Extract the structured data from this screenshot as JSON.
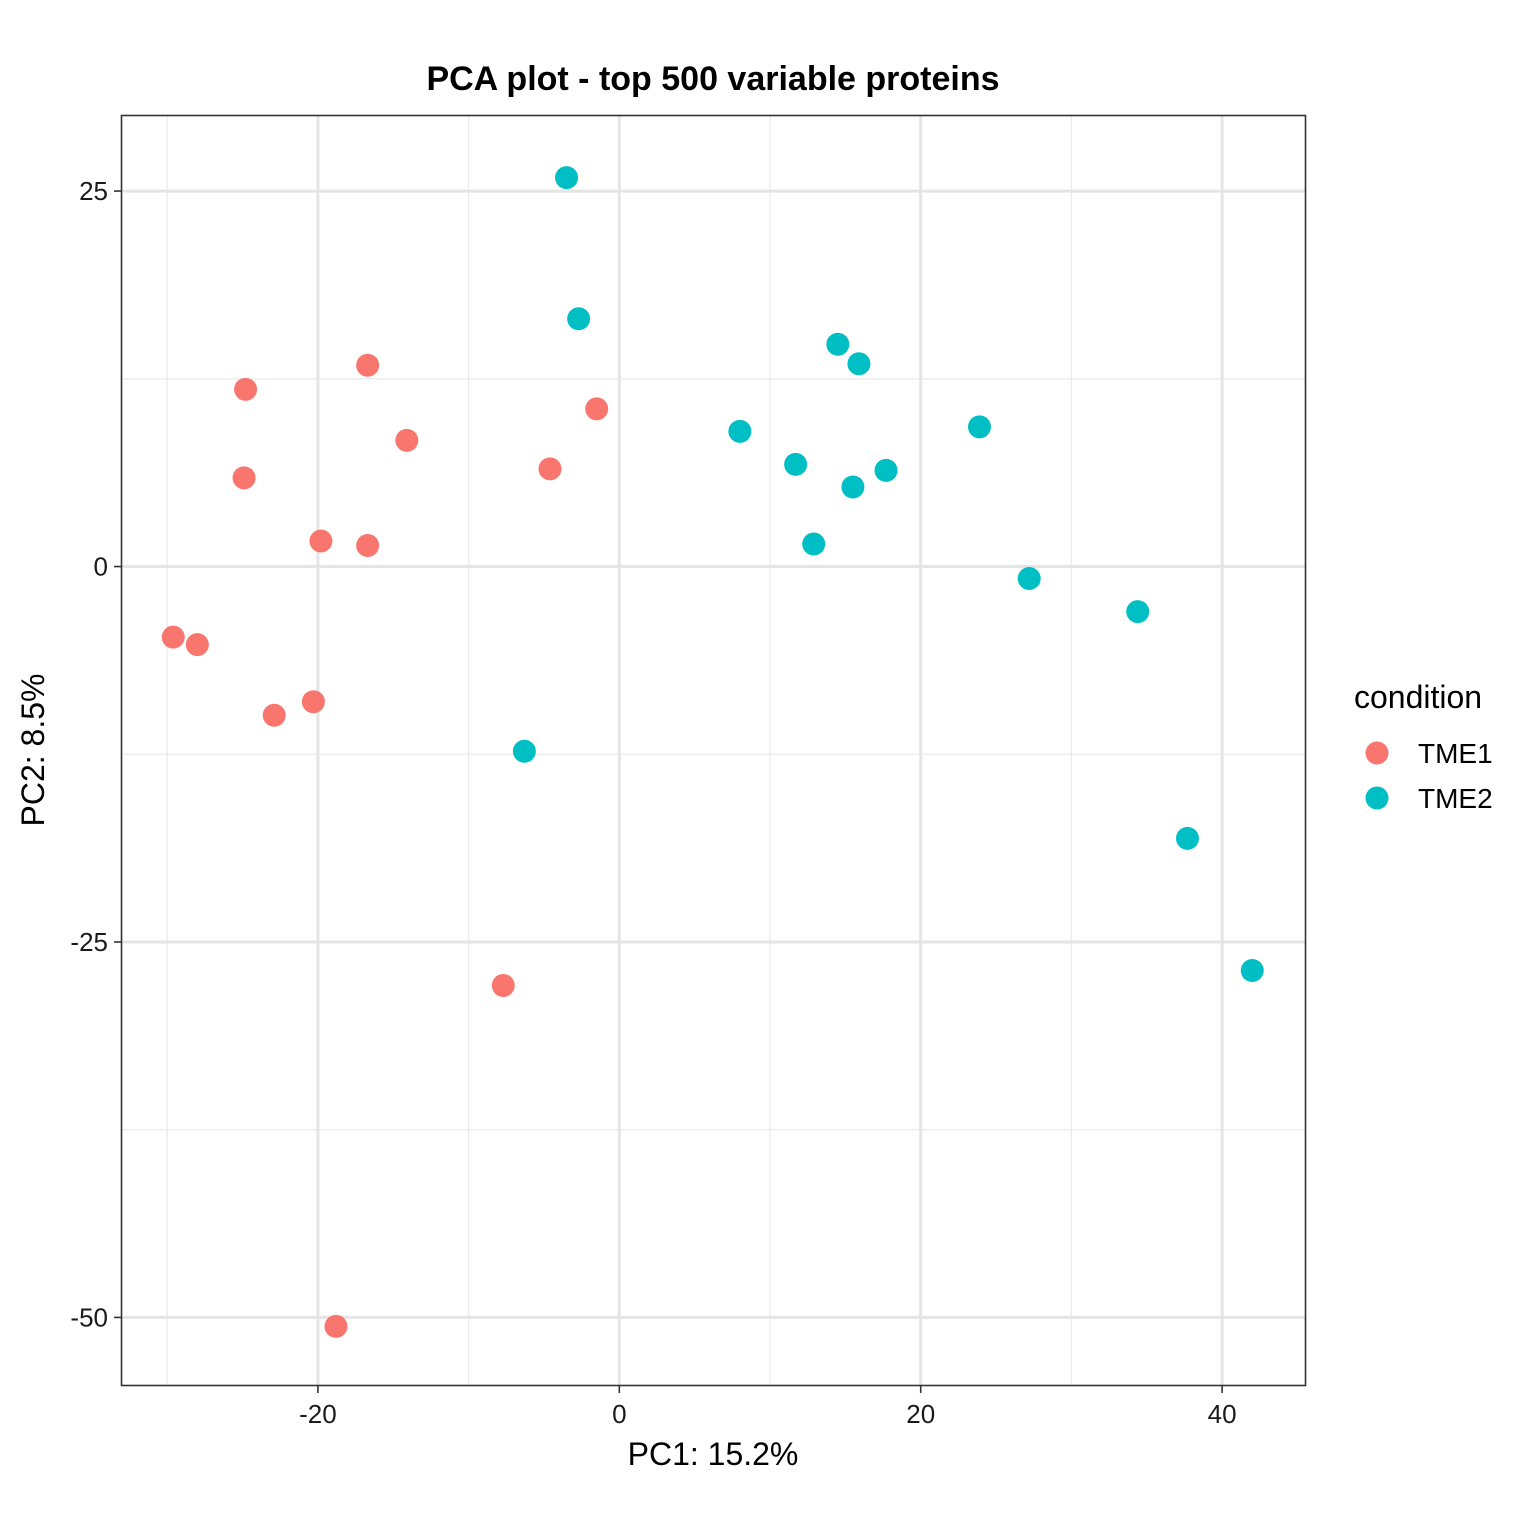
{
  "chart_data": {
    "type": "scatter",
    "title": "PCA plot - top 500 variable proteins",
    "xlabel": "PC1: 15.2%",
    "ylabel": "PC2: 8.5%",
    "xlim": [
      -33,
      45.5
    ],
    "ylim": [
      -54.5,
      30
    ],
    "x_ticks": [
      -20,
      0,
      20,
      40
    ],
    "x_tick_labels": [
      "-20",
      "0",
      "20",
      "40"
    ],
    "y_ticks": [
      25,
      0,
      -25,
      -50
    ],
    "y_tick_labels": [
      "25",
      "0",
      "-25",
      "-50"
    ],
    "grid": true,
    "legend": {
      "title": "condition",
      "placement": "right",
      "entries": [
        {
          "label": "TME1",
          "color": "#F8766D"
        },
        {
          "label": "TME2",
          "color": "#00BFC4"
        }
      ]
    },
    "series": [
      {
        "name": "TME1",
        "color": "#F8766D",
        "points": [
          {
            "x": -24.8,
            "y": 11.8
          },
          {
            "x": -16.7,
            "y": 13.4
          },
          {
            "x": -14.1,
            "y": 8.4
          },
          {
            "x": -1.5,
            "y": 10.5
          },
          {
            "x": -4.6,
            "y": 6.5
          },
          {
            "x": -24.9,
            "y": 5.9
          },
          {
            "x": -19.8,
            "y": 1.7
          },
          {
            "x": -16.7,
            "y": 1.4
          },
          {
            "x": -29.6,
            "y": -4.7
          },
          {
            "x": -28.0,
            "y": -5.2
          },
          {
            "x": -20.3,
            "y": -9.0
          },
          {
            "x": -22.9,
            "y": -9.9
          },
          {
            "x": -7.7,
            "y": -27.9
          },
          {
            "x": -18.8,
            "y": -50.6
          }
        ]
      },
      {
        "name": "TME2",
        "color": "#00BFC4",
        "points": [
          {
            "x": -3.5,
            "y": 25.9
          },
          {
            "x": -2.7,
            "y": 16.5
          },
          {
            "x": 14.5,
            "y": 14.8
          },
          {
            "x": 15.9,
            "y": 13.5
          },
          {
            "x": 8.0,
            "y": 9.0
          },
          {
            "x": 23.9,
            "y": 9.3
          },
          {
            "x": 11.7,
            "y": 6.8
          },
          {
            "x": 17.7,
            "y": 6.4
          },
          {
            "x": 15.5,
            "y": 5.3
          },
          {
            "x": 12.9,
            "y": 1.5
          },
          {
            "x": 27.2,
            "y": -0.8
          },
          {
            "x": 34.4,
            "y": -3.0
          },
          {
            "x": -6.3,
            "y": -12.3
          },
          {
            "x": 37.7,
            "y": -18.1
          },
          {
            "x": 42.0,
            "y": -26.9
          }
        ]
      }
    ]
  }
}
